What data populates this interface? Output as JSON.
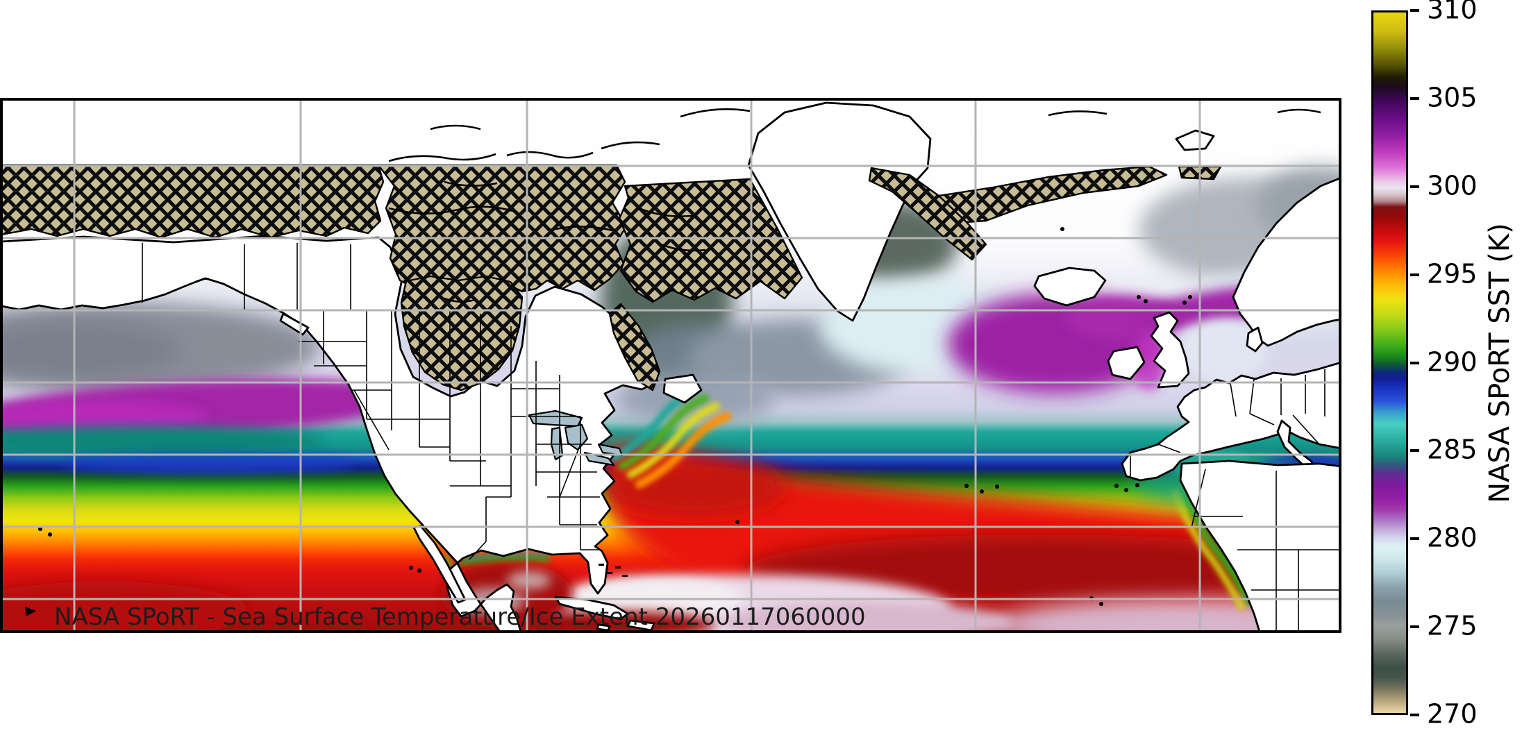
{
  "title": {
    "text": "NASA SPoRT - Sea Surface Temperature/Ice Extent 20260117060000",
    "color": "#1c1c1c"
  },
  "map": {
    "frame_color": "#000000",
    "gridline_color": "#b4b4b4",
    "land_color": "#ffffff",
    "coastline_color": "#000000",
    "lake_color": "#a8bfcb",
    "ice_extent": {
      "fill": "#c8bc93",
      "hatch_style": "black-diagonal-crosshatch",
      "meaning": "ice extent (hatched region)"
    }
  },
  "colorbar": {
    "label": "NASA SPoRT SST (K)",
    "unit": "K",
    "min": 270,
    "max": 310,
    "ticks": [
      {
        "value": 310,
        "label": "310"
      },
      {
        "value": 305,
        "label": "305"
      },
      {
        "value": 300,
        "label": "300"
      },
      {
        "value": 295,
        "label": "295"
      },
      {
        "value": 290,
        "label": "290"
      },
      {
        "value": 285,
        "label": "285"
      },
      {
        "value": 280,
        "label": "280"
      },
      {
        "value": 275,
        "label": "275"
      },
      {
        "value": 270,
        "label": "270"
      }
    ],
    "gradient_stops": [
      {
        "value": 310,
        "color": "#e9d414"
      },
      {
        "value": 309,
        "color": "#d2c011"
      },
      {
        "value": 308,
        "color": "#97900c"
      },
      {
        "value": 307,
        "color": "#575206"
      },
      {
        "value": 306.3,
        "color": "#201b03"
      },
      {
        "value": 305.7,
        "color": "#1d0a22"
      },
      {
        "value": 305,
        "color": "#3f0757"
      },
      {
        "value": 304,
        "color": "#670c83"
      },
      {
        "value": 303,
        "color": "#8f1da0"
      },
      {
        "value": 302,
        "color": "#c13cbe"
      },
      {
        "value": 301,
        "color": "#e07ddc"
      },
      {
        "value": 300.4,
        "color": "#ecc3e6"
      },
      {
        "value": 300,
        "color": "#eae4f4"
      },
      {
        "value": 299.6,
        "color": "#d9c6ca"
      },
      {
        "value": 299.2,
        "color": "#b18287"
      },
      {
        "value": 298.9,
        "color": "#7c1212"
      },
      {
        "value": 298.3,
        "color": "#980909"
      },
      {
        "value": 297.5,
        "color": "#c90b0b"
      },
      {
        "value": 297,
        "color": "#e31111"
      },
      {
        "value": 296,
        "color": "#fc4c03"
      },
      {
        "value": 295,
        "color": "#ff9800"
      },
      {
        "value": 294.2,
        "color": "#fbc60b"
      },
      {
        "value": 293.6,
        "color": "#eee312"
      },
      {
        "value": 292.8,
        "color": "#c6dc16"
      },
      {
        "value": 292,
        "color": "#8fcc19"
      },
      {
        "value": 291,
        "color": "#3fae1d"
      },
      {
        "value": 290.3,
        "color": "#17871b"
      },
      {
        "value": 289.9,
        "color": "#0e5934"
      },
      {
        "value": 289.5,
        "color": "#0d2d74"
      },
      {
        "value": 289.1,
        "color": "#0f1d95"
      },
      {
        "value": 288.4,
        "color": "#1c38c8"
      },
      {
        "value": 287.8,
        "color": "#2a52d8"
      },
      {
        "value": 287.1,
        "color": "#39a3cf"
      },
      {
        "value": 286.5,
        "color": "#47d0c3"
      },
      {
        "value": 285.8,
        "color": "#32b5a9"
      },
      {
        "value": 285.1,
        "color": "#21998e"
      },
      {
        "value": 284.6,
        "color": "#1b8177"
      },
      {
        "value": 284.1,
        "color": "#35537f"
      },
      {
        "value": 283.7,
        "color": "#5c2f91"
      },
      {
        "value": 283,
        "color": "#7f1a9d"
      },
      {
        "value": 282.2,
        "color": "#941fa4"
      },
      {
        "value": 281.6,
        "color": "#a13bad"
      },
      {
        "value": 281,
        "color": "#ad74c6"
      },
      {
        "value": 280.5,
        "color": "#c2a8da"
      },
      {
        "value": 280,
        "color": "#d3d5ec"
      },
      {
        "value": 279.5,
        "color": "#dff2f3"
      },
      {
        "value": 278.8,
        "color": "#cfe8ec"
      },
      {
        "value": 278,
        "color": "#b0ced6"
      },
      {
        "value": 277.2,
        "color": "#8aa2ad"
      },
      {
        "value": 276.4,
        "color": "#798c96"
      },
      {
        "value": 275.6,
        "color": "#859094"
      },
      {
        "value": 275,
        "color": "#9aa09e"
      },
      {
        "value": 274.2,
        "color": "#868d87"
      },
      {
        "value": 273.4,
        "color": "#5b6961"
      },
      {
        "value": 272.6,
        "color": "#3c5048"
      },
      {
        "value": 272,
        "color": "#45554b"
      },
      {
        "value": 271.4,
        "color": "#74715a"
      },
      {
        "value": 270.8,
        "color": "#ab9f77"
      },
      {
        "value": 270.3,
        "color": "#d6c295"
      },
      {
        "value": 270,
        "color": "#f0dba6"
      }
    ]
  }
}
